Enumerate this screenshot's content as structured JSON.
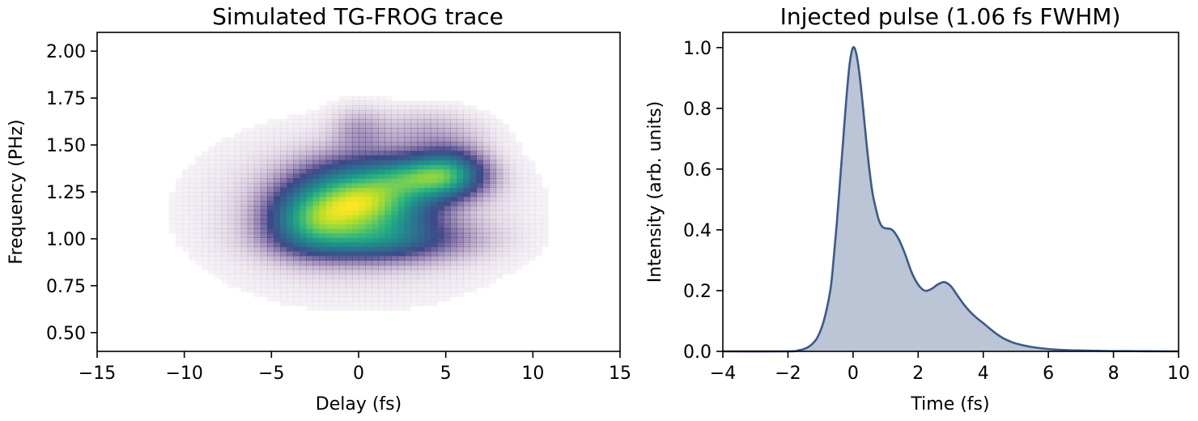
{
  "chart_data": [
    {
      "type": "heatmap",
      "title": "Simulated TG-FROG trace",
      "xlabel": "Delay (fs)",
      "ylabel": "Frequency (PHz)",
      "xlim": [
        -15,
        15
      ],
      "ylim": [
        0.4,
        2.1
      ],
      "xticks": [
        "−15",
        "−10",
        "−5",
        "0",
        "5",
        "10",
        "15"
      ],
      "xtick_values": [
        -15,
        -10,
        -5,
        0,
        5,
        10,
        15
      ],
      "yticks": [
        "0.50",
        "0.75",
        "1.00",
        "1.25",
        "1.50",
        "1.75",
        "2.00"
      ],
      "ytick_values": [
        0.5,
        0.75,
        1.0,
        1.25,
        1.5,
        1.75,
        2.0
      ],
      "colormap": "viridis (white at low intensity)",
      "peak": {
        "delay": 0.0,
        "frequency": 1.22,
        "intensity": 1.0
      },
      "components": [
        {
          "delay": 0.2,
          "frequency": 1.2,
          "sigma_delay": 2.3,
          "sigma_frequency": 0.12,
          "amplitude": 1.0
        },
        {
          "delay": 3.8,
          "frequency": 1.33,
          "sigma_delay": 1.8,
          "sigma_frequency": 0.07,
          "amplitude": 0.6
        },
        {
          "delay": -2.6,
          "frequency": 1.1,
          "sigma_delay": 1.6,
          "sigma_frequency": 0.1,
          "amplitude": 0.5
        },
        {
          "delay": 1.0,
          "frequency": 1.0,
          "sigma_delay": 3.0,
          "sigma_frequency": 0.07,
          "amplitude": 0.35
        },
        {
          "delay": 5.2,
          "frequency": 1.36,
          "sigma_delay": 1.2,
          "sigma_frequency": 0.08,
          "amplitude": 0.35
        },
        {
          "delay": 0.0,
          "frequency": 1.57,
          "sigma_delay": 1.0,
          "sigma_frequency": 0.08,
          "amplitude": 0.08
        },
        {
          "delay": 4.0,
          "frequency": 1.56,
          "sigma_delay": 2.0,
          "sigma_frequency": 0.08,
          "amplitude": 0.07
        },
        {
          "delay": 0.0,
          "frequency": 1.15,
          "sigma_delay": 6.0,
          "sigma_frequency": 0.3,
          "amplitude": 0.06
        }
      ]
    },
    {
      "type": "area",
      "title": "Injected pulse (1.06 fs FWHM)",
      "xlabel": "Time (fs)",
      "ylabel": "Intensity (arb. units)",
      "xlim": [
        -4,
        10
      ],
      "ylim": [
        0.0,
        1.05
      ],
      "xticks": [
        "−4",
        "−2",
        "0",
        "2",
        "4",
        "6",
        "8",
        "10"
      ],
      "xtick_values": [
        -4,
        -2,
        0,
        2,
        4,
        6,
        8,
        10
      ],
      "yticks": [
        "0.0",
        "0.2",
        "0.4",
        "0.6",
        "0.8",
        "1.0"
      ],
      "ytick_values": [
        0.0,
        0.2,
        0.4,
        0.6,
        0.8,
        1.0
      ],
      "line_color": "#3b5a8c",
      "fill_color": "#b7c2d4",
      "x": [
        -4,
        -2,
        -1.7,
        -1.5,
        -1.3,
        -1.1,
        -0.9,
        -0.7,
        -0.6,
        -0.5,
        -0.4,
        -0.3,
        -0.2,
        -0.1,
        0,
        0.1,
        0.2,
        0.3,
        0.4,
        0.5,
        0.6,
        0.7,
        0.8,
        0.9,
        1.0,
        1.2,
        1.4,
        1.6,
        1.8,
        2.0,
        2.2,
        2.4,
        2.6,
        2.8,
        3.0,
        3.2,
        3.4,
        3.6,
        3.8,
        4.0,
        4.2,
        4.4,
        4.6,
        4.8,
        5.0,
        5.4,
        5.8,
        6.2,
        6.6,
        7.0,
        7.5,
        8,
        9,
        10
      ],
      "y": [
        0,
        0,
        0.003,
        0.008,
        0.02,
        0.045,
        0.1,
        0.2,
        0.3,
        0.42,
        0.56,
        0.7,
        0.84,
        0.95,
        1.0,
        0.98,
        0.91,
        0.81,
        0.7,
        0.6,
        0.52,
        0.47,
        0.43,
        0.41,
        0.405,
        0.4,
        0.37,
        0.32,
        0.26,
        0.22,
        0.2,
        0.205,
        0.22,
        0.228,
        0.215,
        0.185,
        0.155,
        0.13,
        0.11,
        0.093,
        0.075,
        0.058,
        0.044,
        0.034,
        0.026,
        0.016,
        0.01,
        0.006,
        0.004,
        0.003,
        0.002,
        0.001,
        0.0005,
        0
      ]
    }
  ]
}
